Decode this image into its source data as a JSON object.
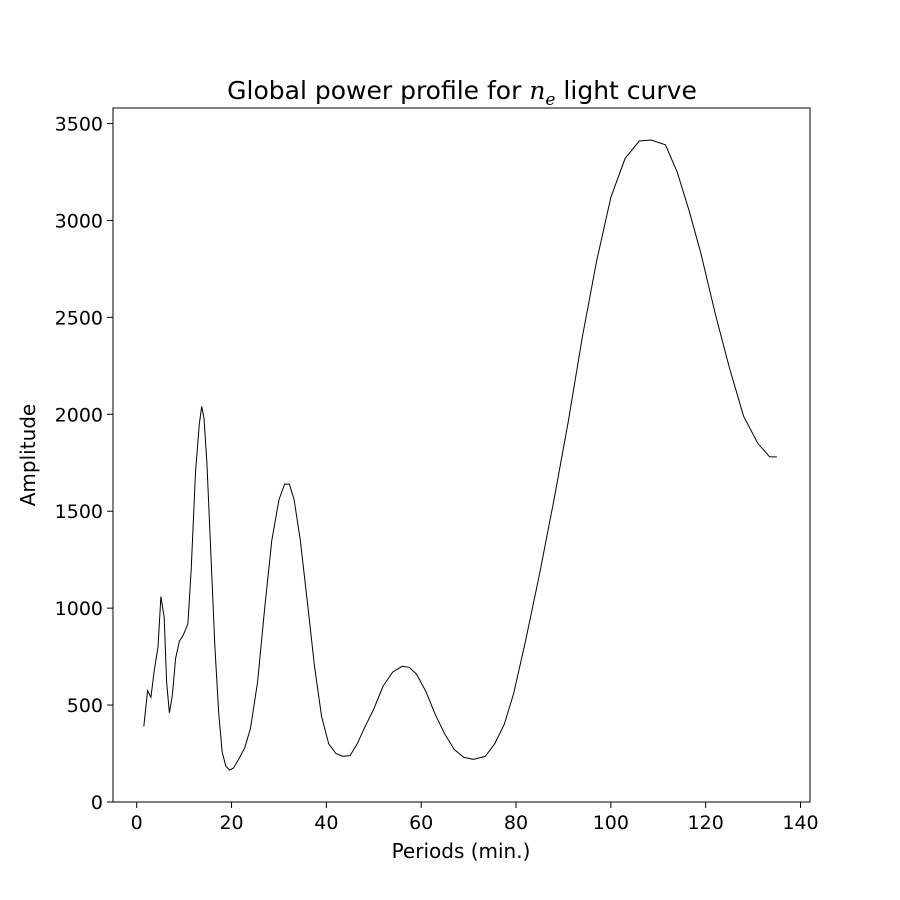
{
  "chart_data": {
    "type": "line",
    "title": {
      "prefix": "Global power profile for ",
      "var_base": "n",
      "var_sub": "e",
      "suffix": " light curve"
    },
    "xlabel": "Periods (min.)",
    "ylabel": "Amplitude",
    "xlim": [
      -5,
      142
    ],
    "ylim": [
      0,
      3580
    ],
    "xticks": [
      0,
      20,
      40,
      60,
      80,
      100,
      120,
      140
    ],
    "yticks": [
      0,
      500,
      1000,
      1500,
      2000,
      2500,
      3000,
      3500
    ],
    "grid": false,
    "series": [
      {
        "color": "#000000",
        "x": [
          1.5,
          2.3,
          3.0,
          3.7,
          4.5,
          5.1,
          5.8,
          6.3,
          6.9,
          7.5,
          8.2,
          9.0,
          9.8,
          10.8,
          11.5,
          12.4,
          13.2,
          13.7,
          14.2,
          14.8,
          15.6,
          16.5,
          17.3,
          18.0,
          18.8,
          19.6,
          20.4,
          21.5,
          22.8,
          24.0,
          25.5,
          27.0,
          28.5,
          30.0,
          31.2,
          32.2,
          33.2,
          34.5,
          36.0,
          37.5,
          39.0,
          40.5,
          42.0,
          43.5,
          45.0,
          46.5,
          48.0,
          50.0,
          52.0,
          54.0,
          56.0,
          57.5,
          59.0,
          61.0,
          63.0,
          65.0,
          67.0,
          69.0,
          71.0,
          73.5,
          75.5,
          77.5,
          79.5,
          82.0,
          85.0,
          88.0,
          91.0,
          94.0,
          97.0,
          100.0,
          103.0,
          106.0,
          108.5,
          111.5,
          114.0,
          116.5,
          119.0,
          122.0,
          125.0,
          128.0,
          131.0,
          133.5,
          135.0
        ],
        "y": [
          390,
          575,
          540,
          680,
          800,
          1060,
          950,
          620,
          460,
          550,
          740,
          830,
          860,
          920,
          1200,
          1700,
          1950,
          2040,
          1980,
          1750,
          1300,
          800,
          460,
          260,
          185,
          165,
          175,
          220,
          280,
          380,
          620,
          1000,
          1350,
          1560,
          1640,
          1640,
          1560,
          1350,
          1030,
          700,
          440,
          300,
          250,
          235,
          240,
          300,
          380,
          480,
          600,
          670,
          700,
          695,
          660,
          570,
          450,
          350,
          270,
          230,
          220,
          235,
          300,
          400,
          560,
          830,
          1180,
          1560,
          1960,
          2400,
          2790,
          3120,
          3320,
          3410,
          3415,
          3390,
          3250,
          3050,
          2830,
          2520,
          2240,
          1990,
          1850,
          1780,
          1780
        ]
      }
    ]
  }
}
